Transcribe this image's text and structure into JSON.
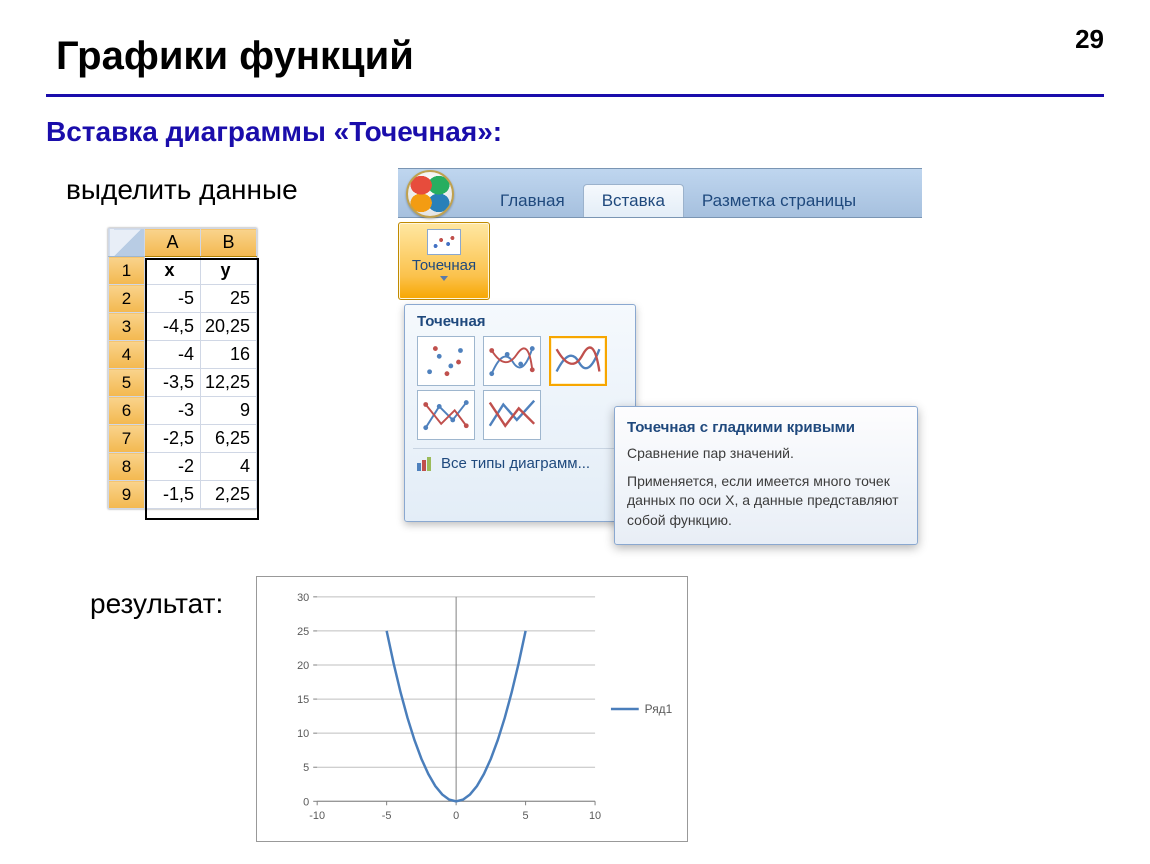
{
  "page_number": "29",
  "slide_title": "Графики функций",
  "subtitle": "Вставка диаграммы «Точечная»:",
  "step_select": "выделить данные",
  "result_label": "результат:",
  "excel": {
    "col_headers": [
      "A",
      "B"
    ],
    "var_headers": [
      "x",
      "y"
    ],
    "rows": [
      {
        "n": "2",
        "x": "-5",
        "y": "25"
      },
      {
        "n": "3",
        "x": "-4,5",
        "y": "20,25"
      },
      {
        "n": "4",
        "x": "-4",
        "y": "16"
      },
      {
        "n": "5",
        "x": "-3,5",
        "y": "12,25"
      },
      {
        "n": "6",
        "x": "-3",
        "y": "9"
      },
      {
        "n": "7",
        "x": "-2,5",
        "y": "6,25"
      },
      {
        "n": "8",
        "x": "-2",
        "y": "4"
      },
      {
        "n": "9",
        "x": "-1,5",
        "y": "2,25"
      }
    ],
    "row1_label": "1",
    "selection_border_color": "#000000"
  },
  "ribbon": {
    "tabs": [
      {
        "label": "Главная",
        "active": false
      },
      {
        "label": "Вставка",
        "active": true
      },
      {
        "label": "Разметка страницы",
        "active": false
      }
    ]
  },
  "scatter_button": {
    "label": "Точечная"
  },
  "gallery": {
    "title": "Точечная",
    "all_types": "Все типы диаграмм...",
    "thumbs": [
      {
        "type": "scatter-markers"
      },
      {
        "type": "scatter-smooth-markers"
      },
      {
        "type": "scatter-smooth",
        "selected": true
      },
      {
        "type": "scatter-straight-markers"
      },
      {
        "type": "scatter-straight"
      }
    ]
  },
  "tooltip": {
    "title": "Точечная с гладкими кривыми",
    "line1": "Сравнение пар значений.",
    "line2": "Применяется, если имеется много точек данных по оси X, а данные представляют собой функцию."
  },
  "chart": {
    "type": "line",
    "series_label": "Ряд1",
    "series_color": "#4a7ebb",
    "line_width": 2.5,
    "background": "#ffffff",
    "grid_color": "#bfbfbf",
    "tick_color": "#808080",
    "font_size": 11,
    "xlim": [
      -10,
      10
    ],
    "ylim": [
      0,
      30
    ],
    "xtick_step": 5,
    "ytick_step": 5,
    "xticks": [
      "-10",
      "-5",
      "0",
      "5",
      "10"
    ],
    "yticks": [
      "0",
      "5",
      "10",
      "15",
      "20",
      "25",
      "30"
    ],
    "points": [
      {
        "x": -5,
        "y": 25
      },
      {
        "x": -4.5,
        "y": 20.25
      },
      {
        "x": -4,
        "y": 16
      },
      {
        "x": -3.5,
        "y": 12.25
      },
      {
        "x": -3,
        "y": 9
      },
      {
        "x": -2.5,
        "y": 6.25
      },
      {
        "x": -2,
        "y": 4
      },
      {
        "x": -1.5,
        "y": 2.25
      },
      {
        "x": -1,
        "y": 1
      },
      {
        "x": -0.5,
        "y": 0.25
      },
      {
        "x": 0,
        "y": 0
      },
      {
        "x": 0.5,
        "y": 0.25
      },
      {
        "x": 1,
        "y": 1
      },
      {
        "x": 1.5,
        "y": 2.25
      },
      {
        "x": 2,
        "y": 4
      },
      {
        "x": 2.5,
        "y": 6.25
      },
      {
        "x": 3,
        "y": 9
      },
      {
        "x": 3.5,
        "y": 12.25
      },
      {
        "x": 4,
        "y": 16
      },
      {
        "x": 4.5,
        "y": 20.25
      },
      {
        "x": 5,
        "y": 25
      }
    ]
  }
}
